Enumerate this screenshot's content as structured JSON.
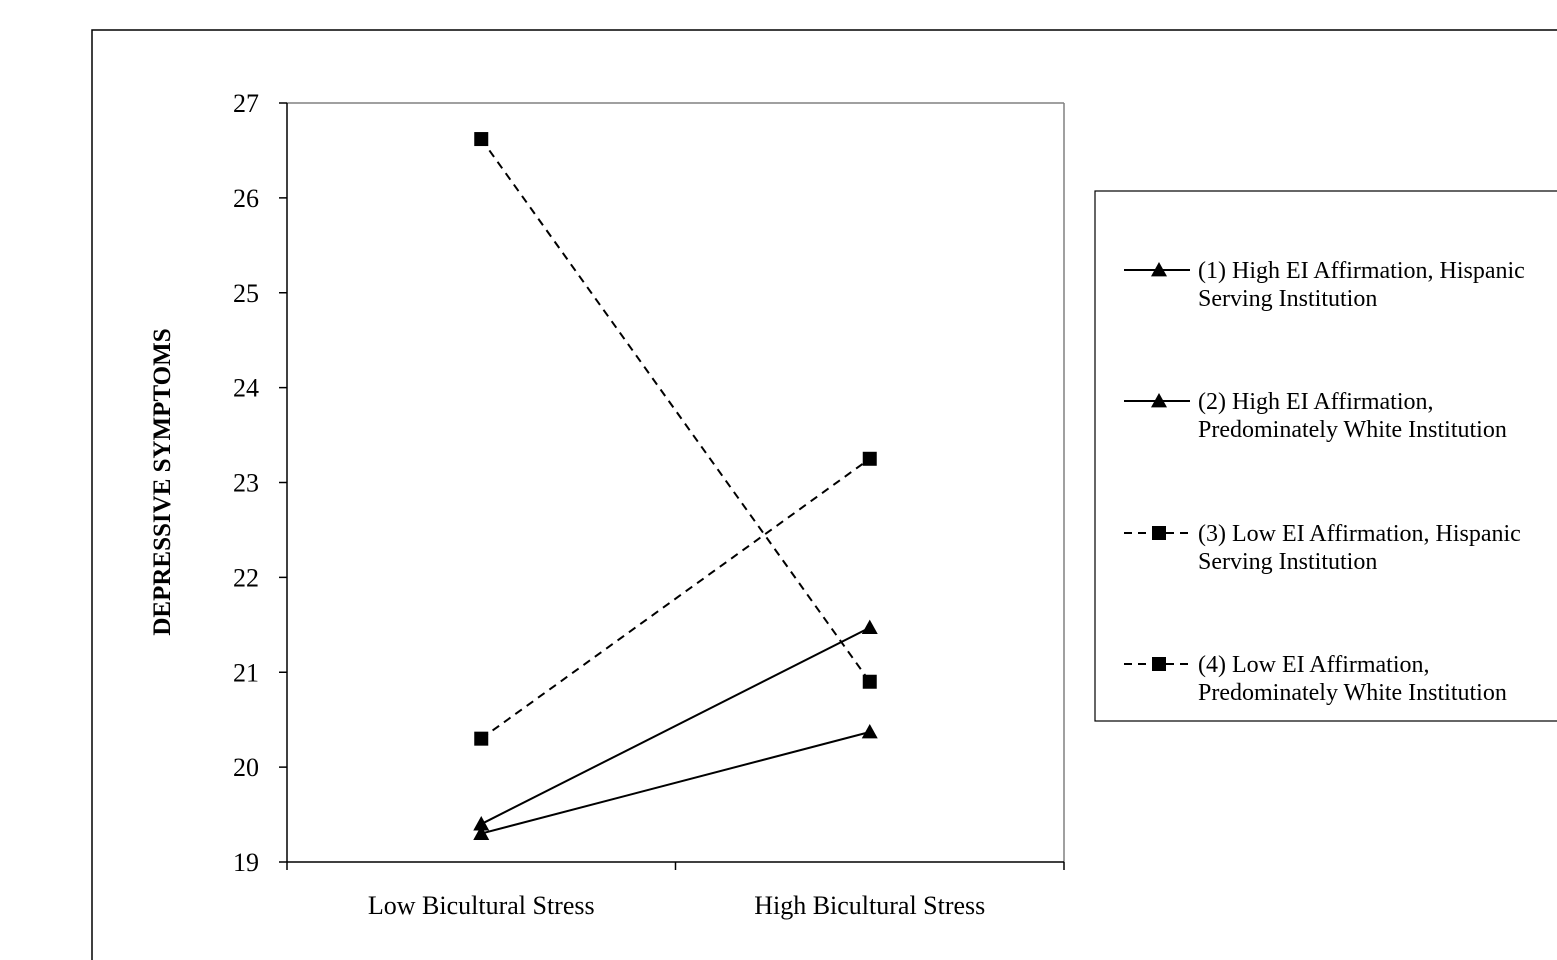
{
  "chart_data": {
    "type": "line",
    "title": "",
    "xlabel": "",
    "ylabel": "DEPRESSIVE SYMPTOMS",
    "categories": [
      "Low Bicultural Stress",
      "High Bicultural Stress"
    ],
    "yticks": [
      "19",
      "20",
      "21",
      "22",
      "23",
      "24",
      "25",
      "26",
      "27"
    ],
    "ylim": [
      19,
      27
    ],
    "grid": false,
    "legend_position": "right",
    "series": [
      {
        "name_lines": [
          "(1) High EI Affirmation, Hispanic",
          "Serving Institution"
        ],
        "values": [
          19.3,
          20.37
        ],
        "marker": "triangle",
        "dash": "solid",
        "color": "#000000"
      },
      {
        "name_lines": [
          "(2) High EI Affirmation,",
          "Predominately White Institution"
        ],
        "values": [
          19.4,
          21.47
        ],
        "marker": "triangle",
        "dash": "solid",
        "color": "#000000"
      },
      {
        "name_lines": [
          "(3) Low EI Affirmation, Hispanic",
          "Serving Institution"
        ],
        "values": [
          20.3,
          23.25
        ],
        "marker": "square",
        "dash": "dashed",
        "color": "#000000"
      },
      {
        "name_lines": [
          "(4) Low EI Affirmation,",
          "Predominately White Institution"
        ],
        "values": [
          26.62,
          20.9
        ],
        "marker": "square",
        "dash": "dashed",
        "color": "#000000"
      }
    ]
  }
}
